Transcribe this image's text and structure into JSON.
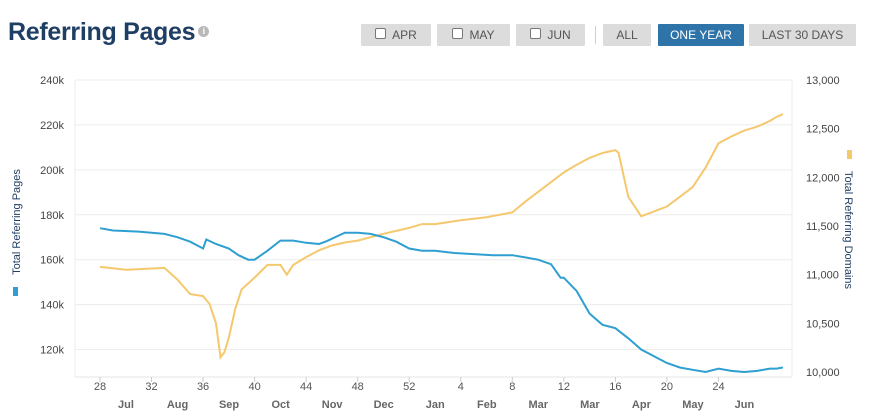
{
  "header": {
    "title": "Referring Pages",
    "info_icon": "info-icon",
    "buttons": [
      {
        "label": "APR",
        "checkbox": true,
        "active": false
      },
      {
        "label": "MAY",
        "checkbox": true,
        "active": false
      },
      {
        "label": "JUN",
        "checkbox": true,
        "active": false
      },
      {
        "label": "ALL",
        "checkbox": false,
        "active": false
      },
      {
        "label": "ONE YEAR",
        "checkbox": false,
        "active": true
      },
      {
        "label": "LAST 30 DAYS",
        "checkbox": false,
        "active": false
      }
    ]
  },
  "colors": {
    "pages": "#2e9fd0",
    "domains": "#f5c86e",
    "title": "#1f3e63",
    "active_button": "#2f74a8"
  },
  "chart_data": {
    "type": "line",
    "x_unit": "week",
    "x_ticks": [
      "28",
      "32",
      "36",
      "40",
      "44",
      "48",
      "52",
      "4",
      "8",
      "12",
      "16",
      "20",
      "24"
    ],
    "x_months": [
      "Jul",
      "Aug",
      "Sep",
      "Oct",
      "Nov",
      "Dec",
      "Jan",
      "Feb",
      "Mar",
      "Mar",
      "Apr",
      "May",
      "Jun"
    ],
    "y_left": {
      "label": "Total Referring Pages",
      "min": 110000,
      "max": 240000,
      "ticks": [
        "120k",
        "140k",
        "160k",
        "180k",
        "200k",
        "220k",
        "240k"
      ],
      "tick_values": [
        120000,
        140000,
        160000,
        180000,
        200000,
        220000,
        240000
      ]
    },
    "y_right": {
      "label": "Total Referring Domains",
      "min": 10000,
      "max": 13000,
      "ticks": [
        "10,000",
        "10,500",
        "11,000",
        "11,500",
        "12,000",
        "12,500",
        "13,000"
      ],
      "tick_values": [
        10000,
        10500,
        11000,
        11500,
        12000,
        12500,
        13000
      ]
    },
    "grid": true,
    "series": [
      {
        "name": "Total Referring Pages",
        "axis": "left",
        "x": [
          0,
          2,
          6,
          10,
          12,
          14,
          16,
          16.5,
          18,
          20,
          21.5,
          23,
          24,
          26,
          28,
          30,
          31,
          32,
          34,
          35,
          38,
          40,
          42,
          44,
          46,
          48,
          50,
          52,
          55,
          58,
          61,
          64,
          66,
          68,
          70,
          71.5,
          72,
          74,
          76,
          78,
          80,
          82,
          84,
          86,
          88,
          90,
          92,
          94,
          96,
          98,
          100,
          102,
          104,
          105,
          106
        ],
        "values": [
          174000,
          173000,
          172500,
          171500,
          170000,
          168000,
          165000,
          169000,
          167000,
          165000,
          162000,
          160000,
          160000,
          164000,
          168500,
          168500,
          168000,
          167500,
          167000,
          168000,
          172000,
          172000,
          171500,
          170000,
          168000,
          165000,
          164000,
          164000,
          163000,
          162500,
          162000,
          162000,
          161000,
          160000,
          158000,
          152000,
          152000,
          146000,
          136000,
          131000,
          129500,
          125000,
          120000,
          117000,
          114000,
          112000,
          111000,
          110000,
          111500,
          110500,
          110000,
          110500,
          111500,
          111500,
          112000
        ]
      },
      {
        "name": "Total Referring Domains",
        "axis": "right",
        "x": [
          0,
          4,
          10,
          12,
          14,
          16,
          17,
          18,
          18.7,
          19.3,
          20,
          21,
          22,
          24,
          26,
          28,
          29,
          30,
          32,
          34,
          36,
          38,
          40,
          44,
          48,
          50,
          52,
          56,
          60,
          64,
          66,
          68,
          70,
          72,
          74,
          76,
          78,
          80,
          80.5,
          81,
          82,
          83,
          84,
          86,
          88,
          90,
          92,
          94,
          96,
          98,
          100,
          102,
          104,
          105,
          106
        ],
        "values": [
          11080,
          11050,
          11070,
          10950,
          10800,
          10780,
          10700,
          10500,
          10150,
          10200,
          10350,
          10650,
          10850,
          10970,
          11100,
          11100,
          11000,
          11100,
          11180,
          11250,
          11300,
          11330,
          11350,
          11420,
          11480,
          11520,
          11520,
          11560,
          11590,
          11640,
          11750,
          11850,
          11950,
          12050,
          12130,
          12200,
          12250,
          12280,
          12250,
          12100,
          11800,
          11700,
          11600,
          11650,
          11700,
          11800,
          11900,
          12100,
          12350,
          12420,
          12480,
          12520,
          12580,
          12620,
          12650
        ]
      }
    ]
  }
}
